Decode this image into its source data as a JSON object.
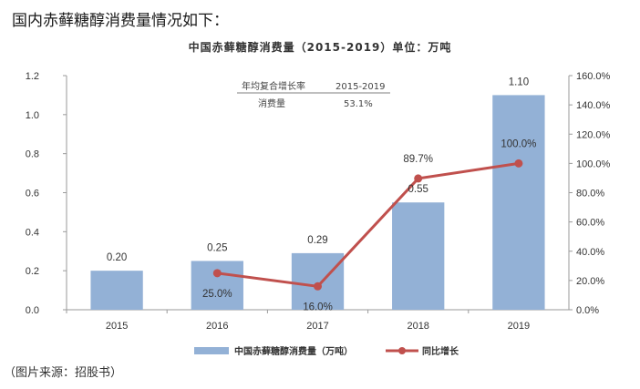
{
  "intro_text": "国内赤藓糖醇消费量情况如下：",
  "source_note": "（图片来源：招股书）",
  "chart_data": {
    "type": "bar",
    "title": "中国赤藓糖醇消费量（2015-2019）单位：万吨",
    "categories": [
      "2015",
      "2016",
      "2017",
      "2018",
      "2019"
    ],
    "series": [
      {
        "name": "中国赤藓糖醇消费量（万吨）",
        "type": "bar",
        "axis": "left",
        "color": "#93b1d6",
        "values": [
          0.2,
          0.25,
          0.29,
          0.55,
          1.1
        ],
        "labels": [
          "0.20",
          "0.25",
          "0.29",
          "0.55",
          "1.10"
        ]
      },
      {
        "name": "同比增长",
        "type": "line",
        "axis": "right",
        "color": "#c0504d",
        "values": [
          null,
          25.0,
          16.0,
          89.7,
          100.0
        ],
        "labels": [
          "",
          "25.0%",
          "16.0%",
          "89.7%",
          "100.0%"
        ]
      }
    ],
    "ylim_left": [
      0,
      1.2
    ],
    "yticks_left": [
      "0.0",
      "0.2",
      "0.4",
      "0.6",
      "0.8",
      "1.0",
      "1.2"
    ],
    "ylim_right": [
      0,
      160
    ],
    "yticks_right": [
      "0.0%",
      "20.0%",
      "40.0%",
      "60.0%",
      "80.0%",
      "100.0%",
      "120.0%",
      "140.0%",
      "160.0%"
    ],
    "annotation_table": {
      "header": [
        "年均复合增长率",
        "2015-2019"
      ],
      "row": [
        "消费量",
        "53.1%"
      ]
    },
    "legend_position": "bottom"
  }
}
